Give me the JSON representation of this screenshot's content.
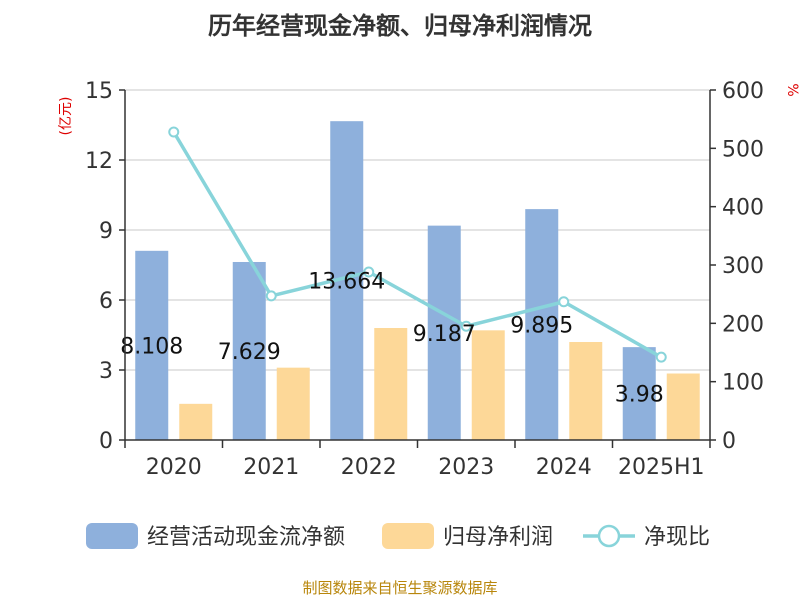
{
  "chart_data": {
    "type": "bar",
    "title": "历年经营现金净额、归母净利润情况",
    "categories": [
      "2020",
      "2021",
      "2022",
      "2023",
      "2024",
      "2025H1"
    ],
    "series": [
      {
        "name": "经营活动现金流净额",
        "type": "bar",
        "axis": "left",
        "color": "#8eb0dc",
        "values": [
          8.108,
          7.629,
          13.664,
          9.187,
          9.895,
          3.98
        ],
        "labels": [
          "8.108",
          "7.629",
          "13.664",
          "9.187",
          "9.895",
          "3.98"
        ]
      },
      {
        "name": "归母净利润",
        "type": "bar",
        "axis": "left",
        "color": "#fdd898",
        "values": [
          1.55,
          3.1,
          4.8,
          4.7,
          4.2,
          2.85
        ]
      },
      {
        "name": "净现比",
        "type": "line",
        "axis": "right",
        "color": "#88d4da",
        "values": [
          528,
          247,
          288,
          195,
          237,
          142
        ]
      }
    ],
    "y_left": {
      "label": "(亿元)",
      "ylim": [
        0,
        15
      ],
      "ticks": [
        "0",
        "3",
        "6",
        "9",
        "12",
        "15"
      ]
    },
    "y_right": {
      "label": "%",
      "ylim": [
        0,
        600
      ],
      "ticks": [
        "0",
        "100",
        "200",
        "300",
        "400",
        "500",
        "600"
      ]
    },
    "grid": true,
    "legend_position": "bottom"
  },
  "colors": {
    "left_unit": "#dd0000",
    "right_unit": "#dd0000",
    "source": "#b8860b"
  },
  "source_text": "制图数据来自恒生聚源数据库"
}
